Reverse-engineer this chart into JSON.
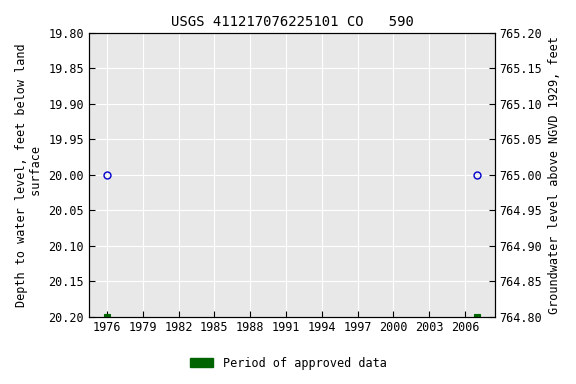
{
  "title": "USGS 411217076225101 CO   590",
  "ylabel_left": "Depth to water level, feet below land\n surface",
  "ylabel_right": "Groundwater level above NGVD 1929, feet",
  "ylim_left_top": 19.8,
  "ylim_left_bottom": 20.2,
  "ylim_right_top": 765.2,
  "ylim_right_bottom": 764.8,
  "yticks_left": [
    19.8,
    19.85,
    19.9,
    19.95,
    20.0,
    20.05,
    20.1,
    20.15,
    20.2
  ],
  "yticks_right": [
    765.2,
    765.15,
    765.1,
    765.05,
    765.0,
    764.95,
    764.9,
    764.85,
    764.8
  ],
  "xlim": [
    1974.5,
    2008.5
  ],
  "xticks": [
    1976,
    1979,
    1982,
    1985,
    1988,
    1991,
    1994,
    1997,
    2000,
    2003,
    2006
  ],
  "circle_points_x": [
    1976,
    2007
  ],
  "circle_points_y": [
    20.0,
    20.0
  ],
  "square_points_x": [
    1976,
    2007
  ],
  "square_points_y": [
    20.2,
    20.2
  ],
  "circle_color": "#0000cc",
  "square_color": "#006400",
  "background_color": "#ffffff",
  "plot_bg_color": "#e8e8e8",
  "grid_color": "#ffffff",
  "title_fontsize": 10,
  "axis_label_fontsize": 8.5,
  "tick_fontsize": 8.5,
  "legend_label": "Period of approved data",
  "legend_color": "#006400"
}
